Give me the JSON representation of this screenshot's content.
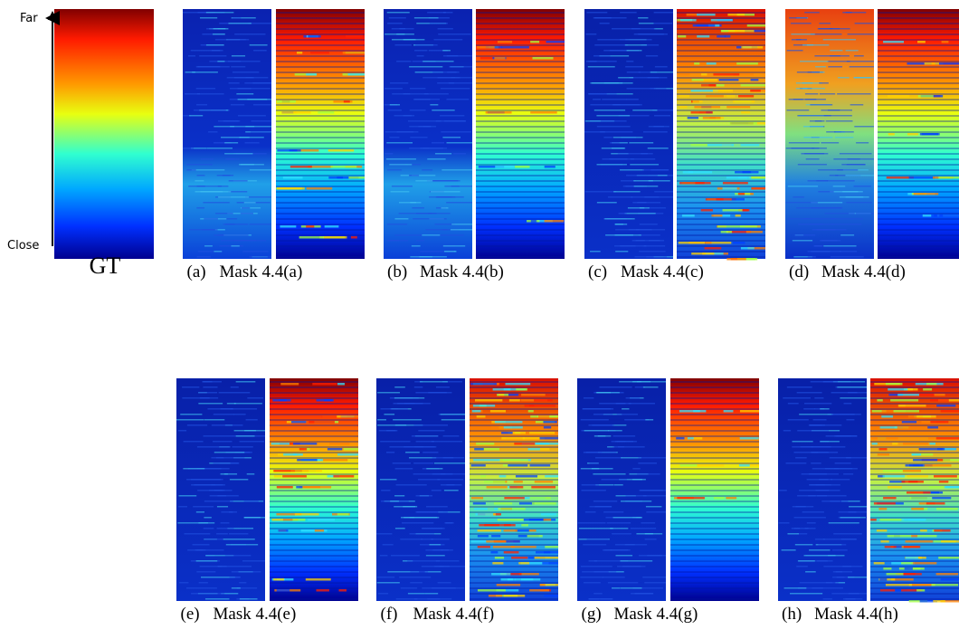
{
  "colorbar": {
    "far": "Far",
    "close": "Close",
    "label": "GT"
  },
  "panels": [
    {
      "label": "(a)",
      "caption": "Mask 4.4(a)"
    },
    {
      "label": "(b)",
      "caption": "Mask 4.4(b)"
    },
    {
      "label": "(c)",
      "caption": "Mask 4.4(c)"
    },
    {
      "label": "(d)",
      "caption": "Mask 4.4(d)"
    },
    {
      "label": "(e)",
      "caption": "Mask 4.4(e)"
    },
    {
      "label": "(f)",
      "caption": "Mask 4.4(f)"
    },
    {
      "label": "(g)",
      "caption": "Mask 4.4(g)"
    },
    {
      "label": "(h)",
      "caption": "Mask 4.4(h)"
    }
  ]
}
